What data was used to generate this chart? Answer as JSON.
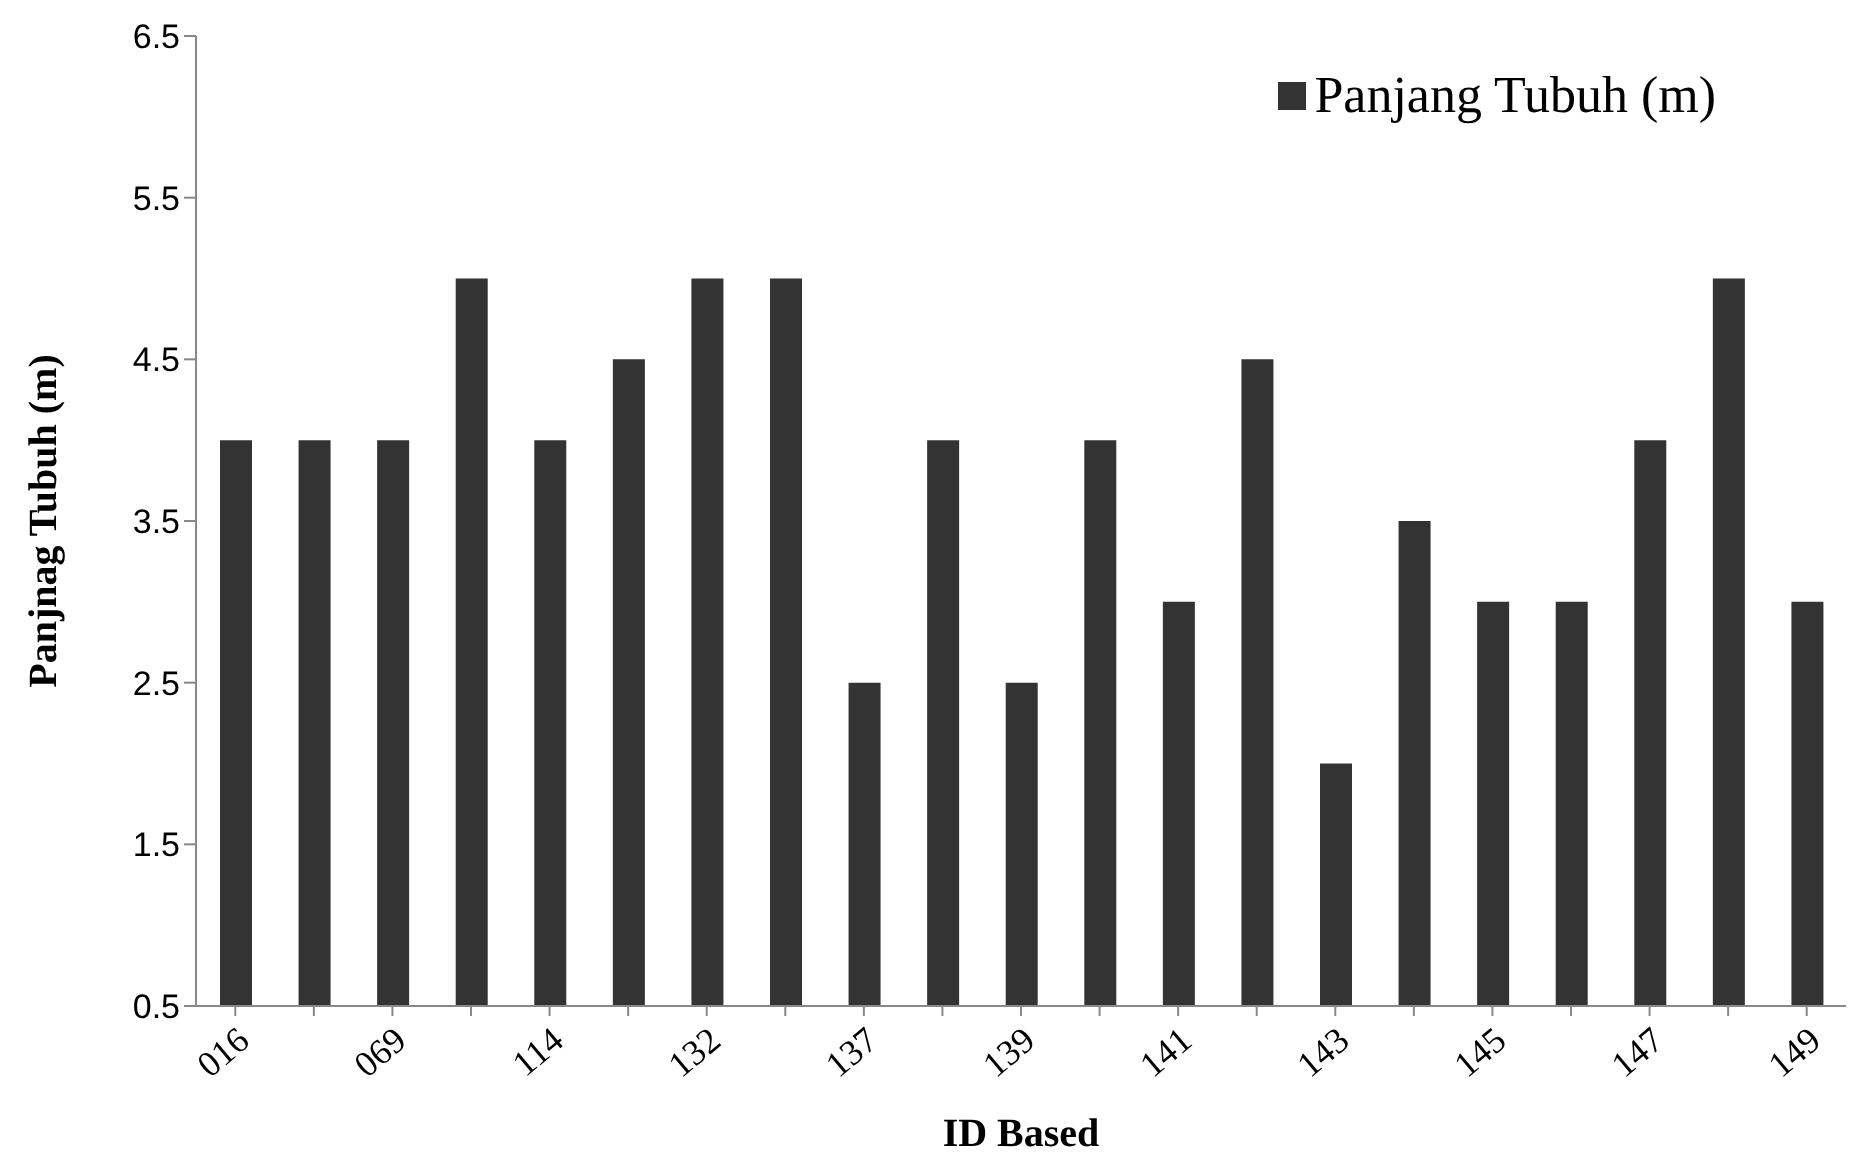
{
  "chart_data": {
    "type": "bar",
    "xlabel": "ID Based",
    "ylabel": "Panjnag Tubuh (m)",
    "categories": [
      "016",
      null,
      "069",
      null,
      "114",
      null,
      "132",
      null,
      "137",
      null,
      "139",
      null,
      "141",
      null,
      "143",
      null,
      "145",
      null,
      "147",
      null,
      "149"
    ],
    "series": [
      {
        "name": "Panjang Tubuh (m)",
        "color": "#333333",
        "values": [
          4,
          4,
          4,
          5,
          4,
          4.5,
          5,
          5,
          2.5,
          4,
          2.5,
          4,
          3,
          4.5,
          2,
          3.5,
          3,
          3,
          4,
          5,
          3
        ]
      }
    ],
    "ylim": [
      0.5,
      6.5
    ],
    "yticks": [
      0.5,
      1.5,
      2.5,
      3.5,
      4.5,
      5.5,
      6.5
    ],
    "grid": false,
    "legend": "top right"
  }
}
